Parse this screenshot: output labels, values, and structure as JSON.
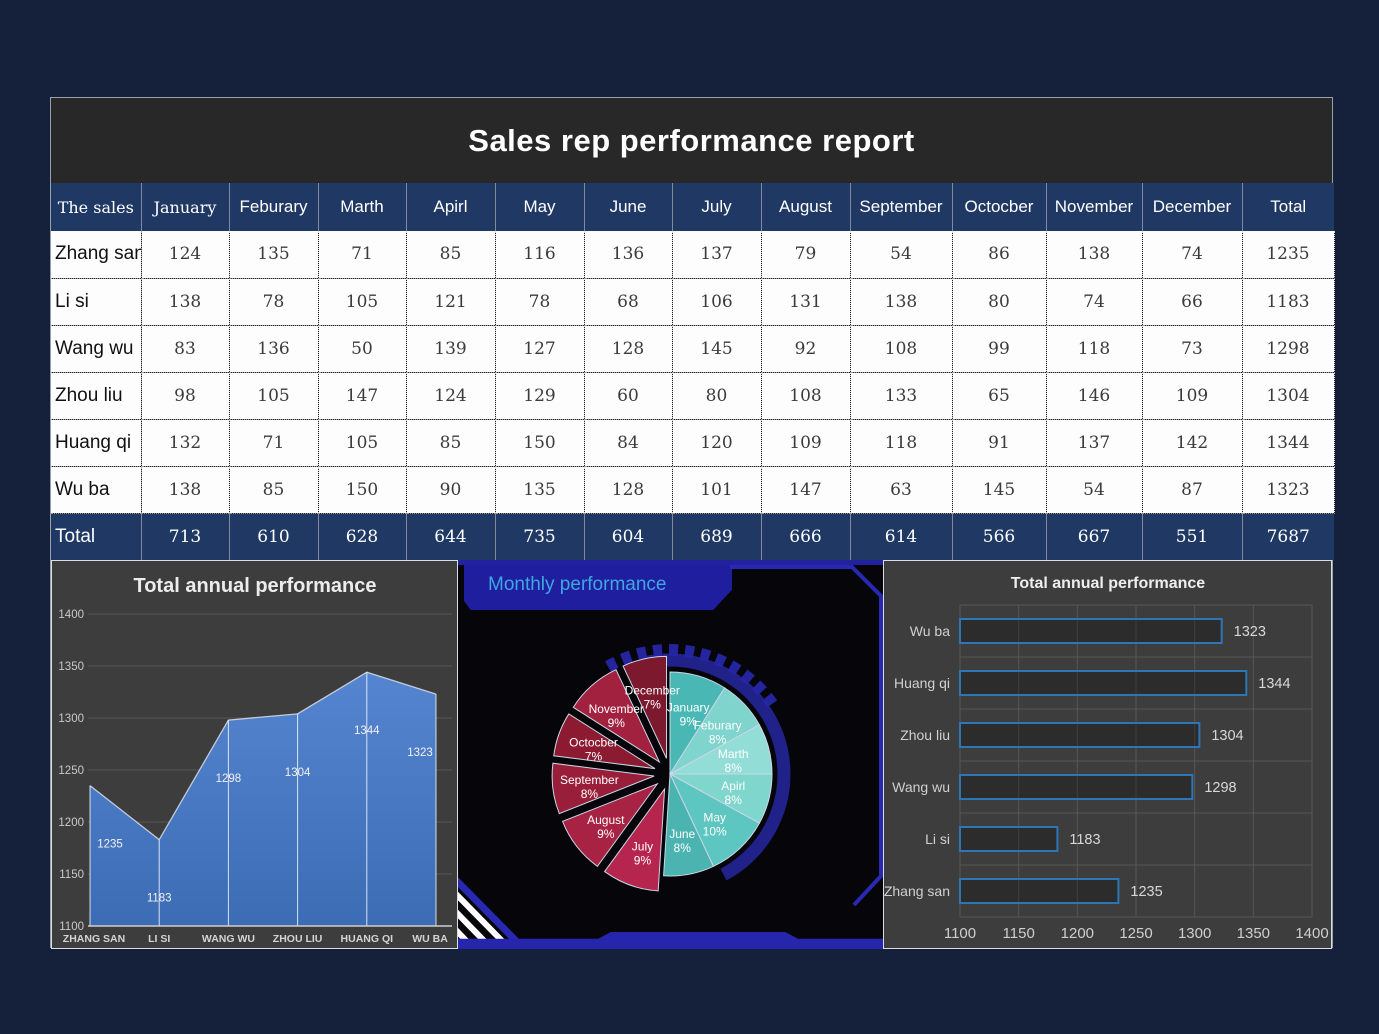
{
  "page_title": "Sales rep performance report",
  "table": {
    "name_header": "The sales",
    "columns": [
      "January",
      "Feburary",
      "Marth",
      "Apirl",
      "May",
      "June",
      "July",
      "August",
      "September",
      "Octocber",
      "November",
      "December",
      "Total"
    ],
    "rows": [
      {
        "name": "Zhang san",
        "values": [
          124,
          135,
          71,
          85,
          116,
          136,
          137,
          79,
          54,
          86,
          138,
          74,
          1235
        ]
      },
      {
        "name": "Li si",
        "values": [
          138,
          78,
          105,
          121,
          78,
          68,
          106,
          131,
          138,
          80,
          74,
          66,
          1183
        ]
      },
      {
        "name": "Wang wu",
        "values": [
          83,
          136,
          50,
          139,
          127,
          128,
          145,
          92,
          108,
          99,
          118,
          73,
          1298
        ]
      },
      {
        "name": "Zhou liu",
        "values": [
          98,
          105,
          147,
          124,
          129,
          60,
          80,
          108,
          133,
          65,
          146,
          109,
          1304
        ]
      },
      {
        "name": "Huang qi",
        "values": [
          132,
          71,
          105,
          85,
          150,
          84,
          120,
          109,
          118,
          91,
          137,
          142,
          1344
        ]
      },
      {
        "name": "Wu ba",
        "values": [
          138,
          85,
          150,
          90,
          135,
          128,
          101,
          147,
          63,
          145,
          54,
          87,
          1323
        ]
      }
    ],
    "total_row": {
      "name": "Total",
      "values": [
        713,
        610,
        628,
        644,
        735,
        604,
        689,
        666,
        614,
        566,
        667,
        551,
        7687
      ]
    }
  },
  "chart_data": [
    {
      "type": "area",
      "title": "Total annual performance",
      "categories": [
        "ZHANG SAN",
        "LI SI",
        "WANG WU",
        "ZHOU LIU",
        "HUANG QI",
        "WU BA"
      ],
      "values": [
        1235,
        1183,
        1298,
        1304,
        1344,
        1323
      ],
      "ylim": [
        1100,
        1400
      ],
      "yticks": [
        1100,
        1150,
        1200,
        1250,
        1300,
        1350,
        1400
      ],
      "grid": true,
      "fill_top": "#5585d0",
      "fill_bottom": "#3c6cb4"
    },
    {
      "type": "pie",
      "title": "Monthly performance",
      "labels": [
        "January",
        "Feburary",
        "Marth",
        "Apirl",
        "May",
        "June",
        "July",
        "August",
        "September",
        "Octocber",
        "November",
        "December"
      ],
      "percents": [
        9,
        8,
        8,
        8,
        10,
        8,
        9,
        9,
        8,
        7,
        9,
        7
      ],
      "colors": [
        "#49b8b4",
        "#7fd4ce",
        "#93ddd7",
        "#7fd6cd",
        "#5ec6c0",
        "#4cb4b0",
        "#b5254e",
        "#a82244",
        "#991e3a",
        "#8c1b32",
        "#a2213f",
        "#7d192e"
      ],
      "exploded": [
        false,
        false,
        false,
        false,
        false,
        false,
        true,
        true,
        true,
        true,
        true,
        true
      ],
      "label_color": "#ffffff",
      "ring_color": "#2e2ec0"
    },
    {
      "type": "bar",
      "title": "Total annual performance",
      "categories": [
        "Wu ba",
        "Huang qi",
        "Zhou liu",
        "Wang wu",
        "Li si",
        "Zhang san"
      ],
      "values": [
        1323,
        1344,
        1304,
        1298,
        1183,
        1235
      ],
      "xlim": [
        1100,
        1400
      ],
      "xticks": [
        1100,
        1150,
        1200,
        1250,
        1300,
        1350,
        1400
      ],
      "grid": true,
      "bar_border": "#2e75b6"
    }
  ],
  "colors": {
    "page_bg": "#15203a",
    "header_blue": "#1f3864",
    "title_bg": "#282828",
    "panel_gray": "#3d3d3d",
    "pie_panel_bg": "#06060a",
    "frame_blue": "#2828b0",
    "banner_text": "#3fa7e0"
  }
}
